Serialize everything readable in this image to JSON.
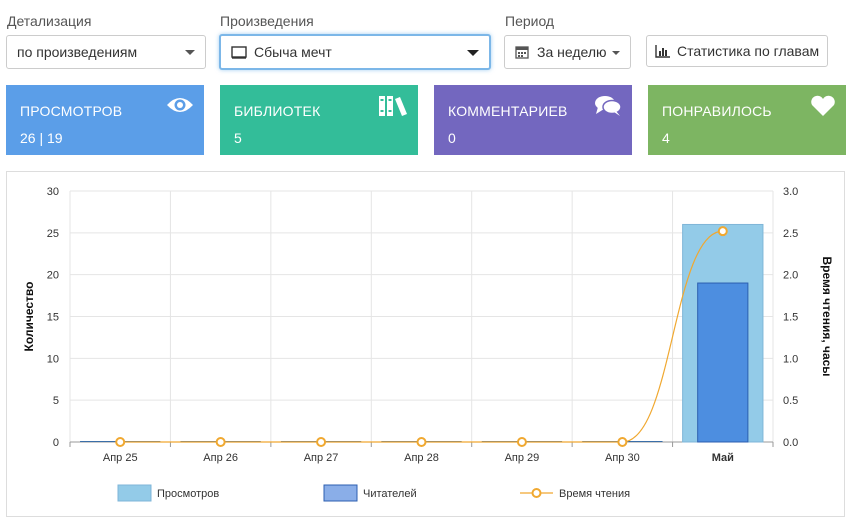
{
  "filters": {
    "detail_label": "Детализация",
    "detail_value": "по произведениям",
    "works_label": "Произведения",
    "works_value": "Сбыча мечт",
    "period_label": "Период",
    "period_value": "За неделю",
    "chapters_button": "Статистика по главам"
  },
  "cards": [
    {
      "title": "ПРОСМОТРОВ",
      "value": "26 | 19",
      "icon": "eye-icon",
      "color": "#5b9ee8"
    },
    {
      "title": "БИБЛИОТЕК",
      "value": "5",
      "icon": "books-icon",
      "color": "#33bd99"
    },
    {
      "title": "КОММЕНТАРИЕВ",
      "value": "0",
      "icon": "comments-icon",
      "color": "#7367bf"
    },
    {
      "title": "ПОНРАВИЛОСЬ",
      "value": "4",
      "icon": "heart-icon",
      "color": "#7db562"
    }
  ],
  "chart_data": {
    "type": "bar",
    "categories": [
      "Апр 25",
      "Апр 26",
      "Апр 27",
      "Апр 28",
      "Апр 29",
      "Апр 30",
      "Май"
    ],
    "series": [
      {
        "name": "Просмотров",
        "type": "bar",
        "axis": "left",
        "color": "#93cbe8",
        "values": [
          0,
          0,
          0,
          0,
          0,
          0,
          26
        ]
      },
      {
        "name": "Читателей",
        "type": "bar",
        "axis": "left",
        "color": "#4d8ee0",
        "values": [
          0,
          0,
          0,
          0,
          0,
          0,
          19
        ]
      },
      {
        "name": "Время чтения",
        "type": "line",
        "axis": "right",
        "color": "#f0a830",
        "values": [
          0,
          0,
          0,
          0,
          0,
          0,
          2.52
        ]
      }
    ],
    "ylabel": "Количество",
    "y2label": "Время чтения, часы",
    "ylim": [
      0,
      30
    ],
    "y2lim": [
      0,
      3.0
    ],
    "yticks": [
      "0",
      "5",
      "10",
      "15",
      "20",
      "25",
      "30"
    ],
    "y2ticks": [
      "0.0",
      "0.5",
      "1.0",
      "1.5",
      "2.0",
      "2.5",
      "3.0"
    ],
    "grid": true,
    "legend_position": "bottom"
  }
}
